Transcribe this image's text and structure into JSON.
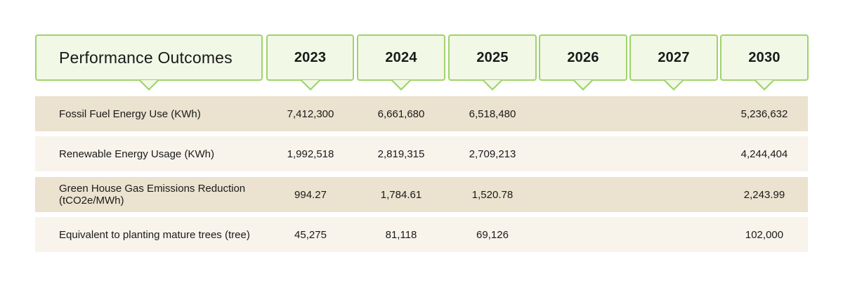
{
  "header": {
    "title": "Performance Outcomes",
    "years": [
      "2023",
      "2024",
      "2025",
      "2026",
      "2027",
      "2030"
    ]
  },
  "rows": [
    {
      "label": "Fossil Fuel Energy Use (KWh)",
      "values": [
        "7,412,300",
        "6,661,680",
        "6,518,480",
        "",
        "",
        "5,236,632"
      ]
    },
    {
      "label": "Renewable Energy Usage (KWh)",
      "values": [
        "1,992,518",
        "2,819,315",
        "2,709,213",
        "",
        "",
        "4,244,404"
      ]
    },
    {
      "label": "Green House Gas Emissions Reduction (tCO2e/MWh)",
      "values": [
        "994.27",
        "1,784.61",
        "1,520.78",
        "",
        "",
        "2,243.99"
      ]
    },
    {
      "label": "Equivalent to planting mature trees (tree)",
      "values": [
        "45,275",
        "81,118",
        "69,126",
        "",
        "",
        "102,000"
      ]
    }
  ],
  "colors": {
    "header_border": "#9fd36a",
    "header_fill": "#f1f8e6",
    "row_dark": "#ebe2cf",
    "row_light": "#f8f4ec"
  }
}
